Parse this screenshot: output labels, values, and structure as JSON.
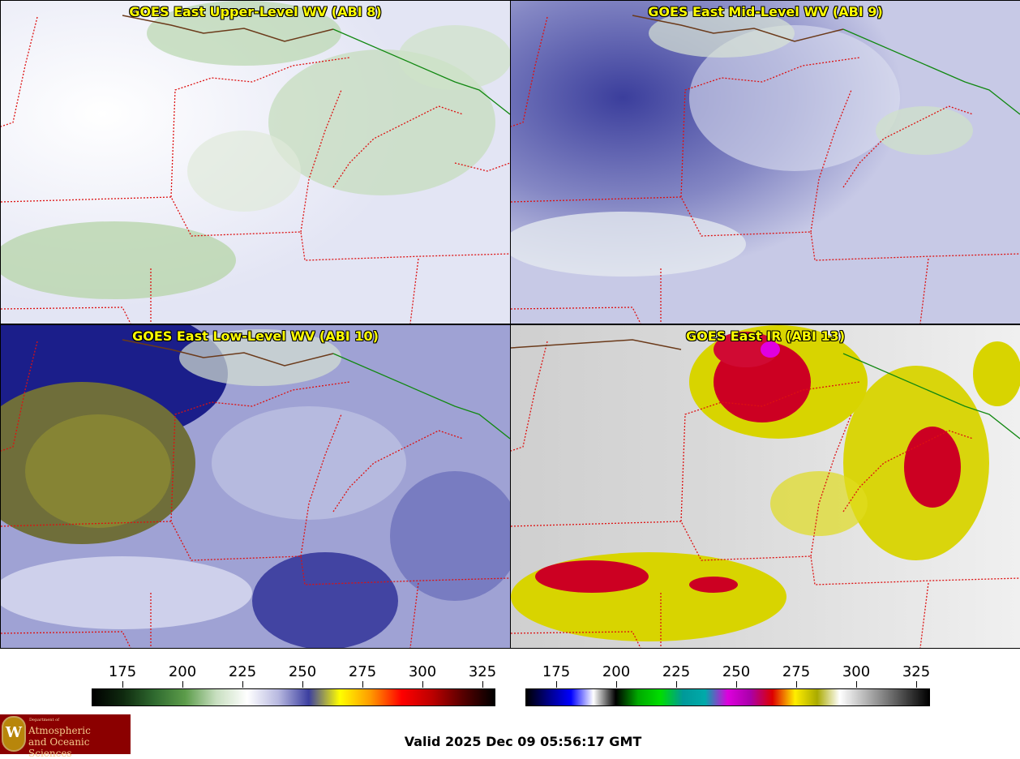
{
  "panels": [
    {
      "title": "GOES East Upper-Level WV (ABI 8)",
      "colors": [
        "#f3f4fb",
        "#e7e9f5",
        "#d8e6d2",
        "#a8c99a"
      ]
    },
    {
      "title": "GOES East Mid-Level WV (ABI 9)",
      "colors": [
        "#c9cbe6",
        "#9396c9",
        "#4547a2",
        "#cfe0c9"
      ]
    },
    {
      "title": "GOES East Low-Level WV (ABI 10)",
      "colors": [
        "#b5b7de",
        "#7477be",
        "#1c1f8c",
        "#8a8a30"
      ]
    },
    {
      "title": "GOES East IR (ABI 13)",
      "colors": [
        "#d8d8d8",
        "#efefef",
        "#d2cf00",
        "#cc0022"
      ]
    }
  ],
  "colorbars": [
    {
      "ticks": [
        "175",
        "200",
        "225",
        "250",
        "275",
        "300",
        "325"
      ],
      "colors": [
        "#000000",
        "#0f2a0f",
        "#2f6a2f",
        "#5c9c4a",
        "#c8dfc0",
        "#ffffff",
        "#b8b9e0",
        "#3c3fa0",
        "#ffff00",
        "#ff9900",
        "#ff0000",
        "#bb0000",
        "#550000",
        "#000000"
      ]
    },
    {
      "ticks": [
        "175",
        "200",
        "225",
        "250",
        "275",
        "300",
        "325"
      ],
      "colors": [
        "#000000",
        "#000088",
        "#0000ff",
        "#ffffff",
        "#000000",
        "#00aa00",
        "#00dd00",
        "#009999",
        "#00aaaa",
        "#dd00dd",
        "#aa00aa",
        "#dd0000",
        "#ffee00",
        "#aaaa00",
        "#ffffff",
        "#c0c0c0",
        "#808080",
        "#404040",
        "#000000"
      ]
    }
  ],
  "logo": {
    "dept": "Department of",
    "line1": "Atmospheric",
    "line2": "and Oceanic Sciences",
    "crest": "W"
  },
  "valid": "Valid 2025 Dec 09 05:56:17 GMT",
  "map_colors": {
    "state_border": "#dd1111",
    "country_border": "#118811",
    "coast": "#6b3a1a"
  }
}
